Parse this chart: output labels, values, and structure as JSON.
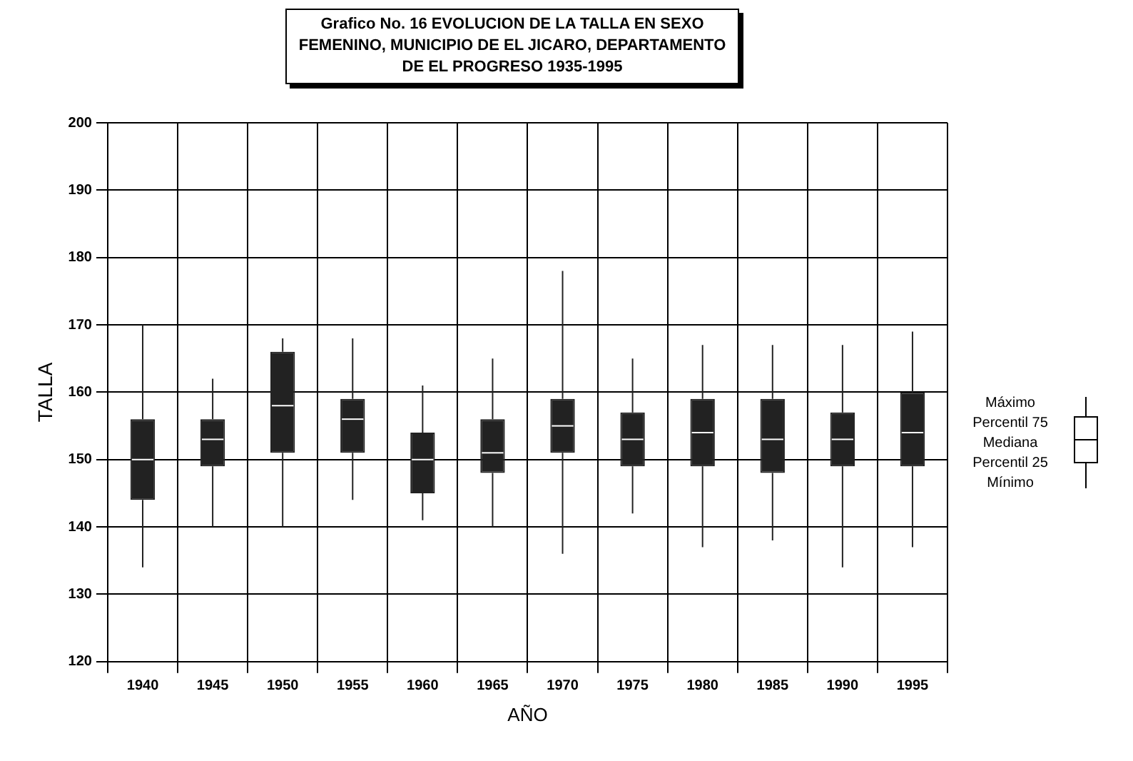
{
  "chart_data": {
    "type": "box",
    "title": "Grafico No. 16 EVOLUCION DE LA TALLA EN SEXO FEMENINO, MUNICIPIO DE EL JICARO, DEPARTAMENTO DE EL PROGRESO 1935-1995",
    "xlabel": "AÑO",
    "ylabel": "TALLA",
    "categories": [
      "1940",
      "1945",
      "1950",
      "1955",
      "1960",
      "1965",
      "1970",
      "1975",
      "1980",
      "1985",
      "1990",
      "1995"
    ],
    "boxes": [
      {
        "low": 134,
        "q1": 144,
        "median": 150,
        "q3": 156,
        "high": 170
      },
      {
        "low": 140,
        "q1": 149,
        "median": 153,
        "q3": 156,
        "high": 162
      },
      {
        "low": 140,
        "q1": 151,
        "median": 158,
        "q3": 166,
        "high": 168
      },
      {
        "low": 144,
        "q1": 151,
        "median": 156,
        "q3": 159,
        "high": 168
      },
      {
        "low": 141,
        "q1": 145,
        "median": 150,
        "q3": 154,
        "high": 161
      },
      {
        "low": 140,
        "q1": 148,
        "median": 151,
        "q3": 156,
        "high": 165
      },
      {
        "low": 136,
        "q1": 151,
        "median": 155,
        "q3": 159,
        "high": 178
      },
      {
        "low": 142,
        "q1": 149,
        "median": 153,
        "q3": 157,
        "high": 165
      },
      {
        "low": 137,
        "q1": 149,
        "median": 154,
        "q3": 159,
        "high": 167
      },
      {
        "low": 138,
        "q1": 148,
        "median": 153,
        "q3": 159,
        "high": 167
      },
      {
        "low": 134,
        "q1": 149,
        "median": 153,
        "q3": 157,
        "high": 167
      },
      {
        "low": 137,
        "q1": 149,
        "median": 154,
        "q3": 160,
        "high": 169
      }
    ],
    "color": "#222222",
    "ylim": [
      120,
      200
    ],
    "yticks": [
      120,
      130,
      140,
      150,
      160,
      170,
      180,
      190,
      200
    ],
    "grid": true,
    "annotations": [
      "Máximo",
      "Percentil 75",
      "Mediana",
      "Percentil 25",
      "Mínimo"
    ]
  }
}
